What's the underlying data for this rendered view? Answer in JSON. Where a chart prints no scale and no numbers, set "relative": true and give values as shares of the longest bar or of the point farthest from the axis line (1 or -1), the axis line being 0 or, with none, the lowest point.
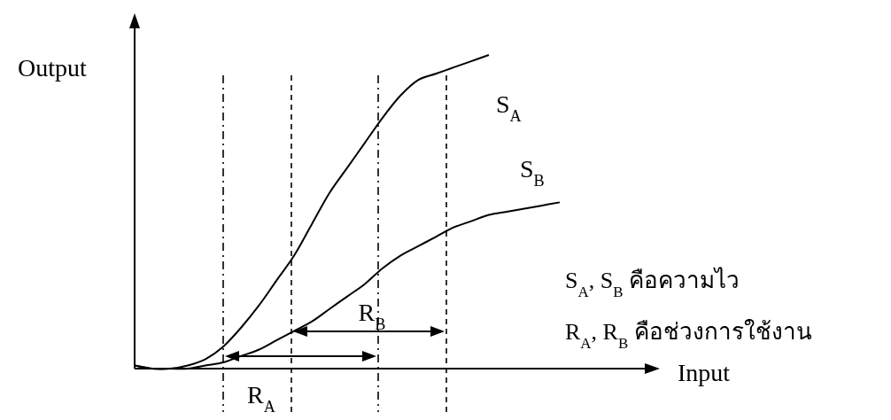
{
  "chart_data": {
    "type": "line",
    "relative": true,
    "xlabel": "Input",
    "ylabel": "Output",
    "categories": [
      null,
      null,
      null,
      null,
      null,
      null,
      null,
      null,
      null,
      null,
      null,
      null,
      null,
      null,
      null,
      null,
      null,
      null,
      null,
      null,
      null,
      null,
      null,
      null,
      null
    ],
    "series": [
      {
        "name": "S$_{A}$",
        "color": "#000000",
        "values": [
          0.01,
          0.0,
          0.0,
          0.01,
          0.03,
          0.07,
          0.13,
          0.2,
          0.28,
          0.36,
          0.46,
          0.56,
          0.64,
          0.72,
          0.8,
          0.87,
          0.92,
          0.94,
          0.96,
          0.98,
          1,
          null,
          null,
          null,
          null
        ]
      },
      {
        "name": "S$_{B}$",
        "color": "#000000",
        "values": [
          0.01,
          0.0,
          0.0,
          0.0,
          0.01,
          0.02,
          0.04,
          0.06,
          0.09,
          0.12,
          0.15,
          0.19,
          0.23,
          0.27,
          0.32,
          0.36,
          0.39,
          0.42,
          0.45,
          0.47,
          0.49,
          0.5,
          0.51,
          0.52,
          0.53
        ]
      }
    ],
    "annotations": [
      "R$_{A}$",
      "R$_{B}$",
      "S$_{A}$, S$_{B}$ คือความไว",
      "R$_{A}$, R$_{B}$ คือช่วงการใช้งาน"
    ]
  }
}
